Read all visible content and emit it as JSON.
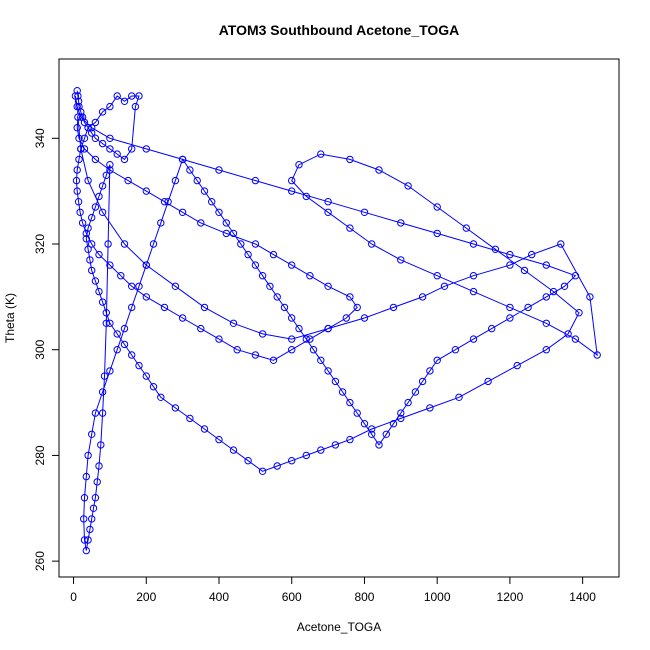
{
  "chart_data": {
    "type": "scatter",
    "title": "ATOM3 Southbound Acetone_TOGA",
    "xlabel": "Acetone_TOGA",
    "ylabel": "Theta (K)",
    "xlim": [
      -40,
      1500
    ],
    "ylim": [
      257,
      355
    ],
    "xticks": [
      0,
      200,
      400,
      600,
      800,
      1000,
      1200,
      1400
    ],
    "yticks": [
      260,
      280,
      300,
      320,
      340
    ],
    "grid": false,
    "legend": "none",
    "color": "#0000ff",
    "series": [
      {
        "x": [
          10,
          12,
          14,
          15,
          20,
          25,
          30,
          40,
          50,
          60,
          80,
          100,
          120,
          140,
          160,
          170,
          180,
          160,
          140,
          120,
          100,
          80,
          60,
          40,
          30,
          20,
          15,
          10,
          8,
          10,
          14,
          18,
          25,
          35,
          50,
          70,
          100,
          130,
          160,
          200,
          250,
          300,
          350,
          400,
          450,
          500,
          550,
          600,
          650,
          700,
          750,
          780,
          760,
          700,
          650,
          600,
          550,
          500,
          420,
          350,
          300,
          250,
          200,
          150,
          100,
          60,
          30,
          15,
          10,
          12,
          20,
          40,
          80,
          140,
          200,
          280,
          360,
          440,
          520,
          600,
          700,
          800,
          880,
          960,
          1020,
          1100,
          1200,
          1260,
          1340,
          1420,
          1440,
          1380,
          1300,
          1200,
          1100,
          1000,
          900,
          820,
          760,
          700,
          640,
          600,
          620,
          680,
          760,
          840,
          920,
          1000,
          1080,
          1160,
          1240,
          1320,
          1390,
          1360,
          1300,
          1220,
          1140,
          1060,
          980,
          900,
          820,
          760,
          720,
          680,
          640,
          600,
          560,
          520,
          480,
          440,
          400,
          360,
          320,
          280,
          240,
          220,
          200,
          180,
          160,
          140,
          120,
          100,
          90,
          80,
          70,
          60,
          50,
          45,
          40,
          35,
          40,
          50,
          60,
          70,
          80,
          90,
          100,
          95,
          90,
          85,
          80,
          75,
          70,
          65,
          60,
          55,
          50,
          45,
          40,
          35,
          30,
          28,
          30,
          35,
          40,
          50,
          60,
          80,
          100,
          120,
          140,
          160,
          180,
          200,
          220,
          240,
          260,
          280,
          300,
          320,
          340,
          360,
          380,
          400,
          420,
          440,
          460,
          480,
          500,
          520,
          540,
          560,
          580,
          600,
          620,
          640,
          660,
          680,
          700,
          720,
          740,
          760,
          780,
          800,
          820,
          840,
          860,
          880,
          900,
          920,
          940,
          960,
          980,
          1000,
          1050,
          1100,
          1150,
          1200,
          1250,
          1300,
          1350,
          1380,
          1300,
          1200,
          1100,
          1000,
          900,
          800,
          700,
          600,
          500,
          400,
          300,
          200,
          100,
          50,
          20,
          10,
          5
        ],
        "y": [
          349,
          348,
          347,
          346,
          345,
          344,
          343,
          342,
          341,
          340,
          339,
          338,
          337,
          336,
          338,
          346,
          348,
          348,
          347,
          348,
          346,
          345,
          343,
          342,
          340,
          338,
          336,
          334,
          332,
          330,
          328,
          326,
          324,
          322,
          320,
          318,
          316,
          314,
          312,
          310,
          308,
          306,
          304,
          302,
          300,
          299,
          298,
          300,
          302,
          304,
          306,
          308,
          310,
          312,
          314,
          316,
          318,
          320,
          322,
          324,
          326,
          328,
          330,
          332,
          334,
          336,
          338,
          340,
          342,
          344,
          338,
          332,
          326,
          320,
          316,
          312,
          308,
          305,
          303,
          302,
          304,
          306,
          308,
          310,
          312,
          314,
          316,
          318,
          320,
          310,
          299,
          302,
          305,
          308,
          311,
          314,
          317,
          320,
          323,
          326,
          329,
          332,
          335,
          337,
          336,
          334,
          331,
          327,
          323,
          319,
          315,
          311,
          307,
          303,
          300,
          297,
          294,
          291,
          289,
          287,
          285,
          283,
          282,
          281,
          280,
          279,
          278,
          277,
          279,
          281,
          283,
          285,
          287,
          289,
          291,
          293,
          295,
          297,
          299,
          301,
          303,
          305,
          307,
          309,
          311,
          313,
          315,
          317,
          319,
          321,
          323,
          325,
          327,
          329,
          331,
          333,
          335,
          320,
          305,
          295,
          288,
          282,
          278,
          275,
          272,
          270,
          268,
          266,
          264,
          262,
          264,
          268,
          272,
          276,
          280,
          284,
          288,
          292,
          296,
          300,
          304,
          308,
          312,
          316,
          320,
          324,
          328,
          332,
          336,
          334,
          332,
          330,
          328,
          326,
          324,
          322,
          320,
          318,
          316,
          314,
          312,
          310,
          308,
          306,
          304,
          302,
          300,
          298,
          296,
          294,
          292,
          290,
          288,
          286,
          284,
          282,
          284,
          286,
          288,
          290,
          292,
          294,
          296,
          298,
          300,
          302,
          304,
          306,
          308,
          310,
          312,
          314,
          316,
          318,
          320,
          322,
          324,
          326,
          328,
          330,
          332,
          334,
          336,
          338,
          340,
          342,
          344,
          346,
          348
        ]
      }
    ]
  }
}
